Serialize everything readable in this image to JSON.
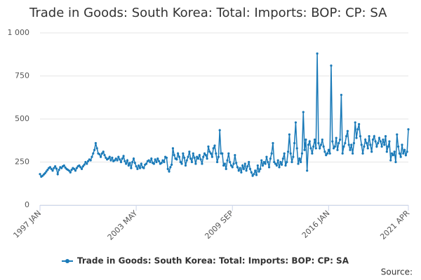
{
  "chart_data": {
    "type": "line",
    "title": "Trade in Goods: South Korea: Total: Imports: BOP: CP: SA",
    "source": "Source:",
    "categories": [
      "1997 JAN",
      null,
      null,
      null,
      null,
      null,
      null,
      null,
      null,
      null,
      null,
      null,
      null,
      null,
      null,
      null,
      null,
      null,
      null,
      null,
      null,
      null,
      null,
      null,
      null,
      null,
      null,
      null,
      null,
      null,
      null,
      null,
      null,
      null,
      null,
      null,
      null,
      null,
      null,
      null,
      null,
      null,
      null,
      null,
      null,
      null,
      null,
      null,
      null,
      null,
      null,
      null,
      null,
      null,
      null,
      null,
      null,
      null,
      null,
      null,
      null,
      null,
      null,
      null,
      null,
      null,
      null,
      null,
      null,
      null,
      null,
      null,
      null,
      null,
      null,
      null,
      "2003 MAY",
      null,
      null,
      null,
      null,
      null,
      null,
      null,
      null,
      null,
      null,
      null,
      null,
      null,
      null,
      null,
      null,
      null,
      null,
      null,
      null,
      null,
      null,
      null,
      null,
      null,
      null,
      null,
      null,
      null,
      null,
      null,
      null,
      null,
      null,
      null,
      null,
      null,
      null,
      null,
      null,
      null,
      null,
      null,
      null,
      null,
      null,
      null,
      null,
      null,
      null,
      null,
      null,
      null,
      null,
      null,
      null,
      null,
      null,
      null,
      null,
      null,
      null,
      null,
      null,
      null,
      null,
      null,
      null,
      null,
      null,
      null,
      null,
      null,
      null,
      null,
      "2009 SEP",
      null,
      null,
      null,
      null,
      null,
      null,
      null,
      null,
      null,
      null,
      null,
      null,
      null,
      null,
      null,
      null,
      null,
      null,
      null,
      null,
      null,
      null,
      null,
      null,
      null,
      null,
      null,
      null,
      null,
      null,
      null,
      null,
      null,
      null,
      null,
      null,
      null,
      null,
      null,
      null,
      null,
      null,
      null,
      null,
      null,
      null,
      null,
      null,
      null,
      null,
      null,
      null,
      null,
      null,
      null,
      null,
      null,
      null,
      null,
      null,
      null,
      null,
      null,
      null,
      null,
      null,
      null,
      null,
      null,
      null,
      null,
      null,
      null,
      null,
      null,
      "2016 JAN",
      null,
      null,
      null,
      null,
      null,
      null,
      null,
      null,
      null,
      null,
      null,
      null,
      null,
      null,
      null,
      null,
      null,
      null,
      null,
      null,
      null,
      null,
      null,
      null,
      null,
      null,
      null,
      null,
      null,
      null,
      null,
      null,
      null,
      null,
      null,
      null,
      null,
      null,
      null,
      null,
      null,
      null,
      null,
      null,
      null,
      null,
      null,
      null,
      null,
      null,
      null,
      null,
      null,
      null,
      null,
      null,
      null,
      null,
      null,
      null,
      null,
      null,
      "2021 APR"
    ],
    "series": [
      {
        "name": "Trade in Goods: South Korea: Total: Imports: BOP: CP: SA",
        "color": "#1a7ab8",
        "values": [
          180,
          165,
          170,
          178,
          185,
          195,
          205,
          215,
          220,
          210,
          200,
          215,
          225,
          212,
          180,
          205,
          220,
          215,
          225,
          230,
          218,
          210,
          205,
          200,
          190,
          205,
          215,
          210,
          200,
          215,
          225,
          230,
          220,
          210,
          225,
          235,
          250,
          240,
          255,
          265,
          260,
          280,
          300,
          320,
          360,
          330,
          300,
          295,
          280,
          300,
          310,
          290,
          275,
          265,
          270,
          280,
          260,
          275,
          255,
          260,
          270,
          260,
          280,
          265,
          250,
          270,
          285,
          255,
          240,
          260,
          230,
          245,
          215,
          250,
          270,
          245,
          225,
          210,
          230,
          215,
          240,
          220,
          215,
          235,
          240,
          255,
          260,
          250,
          270,
          245,
          240,
          265,
          250,
          270,
          255,
          240,
          245,
          260,
          250,
          280,
          275,
          210,
          195,
          220,
          235,
          330,
          290,
          270,
          265,
          300,
          280,
          250,
          240,
          300,
          275,
          230,
          260,
          280,
          310,
          270,
          250,
          300,
          275,
          240,
          280,
          270,
          290,
          265,
          240,
          280,
          300,
          290,
          270,
          340,
          310,
          300,
          280,
          330,
          345,
          300,
          250,
          280,
          435,
          300,
          300,
          230,
          240,
          210,
          260,
          300,
          250,
          230,
          220,
          240,
          290,
          245,
          220,
          200,
          215,
          190,
          230,
          210,
          240,
          200,
          225,
          250,
          210,
          190,
          170,
          180,
          200,
          175,
          230,
          195,
          210,
          260,
          230,
          250,
          240,
          280,
          250,
          220,
          270,
          300,
          360,
          250,
          240,
          230,
          260,
          220,
          250,
          235,
          270,
          300,
          230,
          250,
          310,
          410,
          300,
          250,
          280,
          360,
          480,
          330,
          240,
          270,
          250,
          300,
          540,
          320,
          380,
          200,
          350,
          370,
          330,
          300,
          340,
          380,
          330,
          880,
          360,
          330,
          350,
          380,
          340,
          310,
          290,
          300,
          320,
          300,
          810,
          370,
          330,
          340,
          390,
          320,
          360,
          380,
          640,
          300,
          340,
          360,
          400,
          430,
          350,
          320,
          350,
          300,
          360,
          480,
          390,
          440,
          470,
          400,
          350,
          300,
          340,
          380,
          360,
          330,
          400,
          350,
          310,
          380,
          400,
          370,
          340,
          360,
          390,
          370,
          340,
          380,
          350,
          400,
          310,
          340,
          370,
          260,
          300,
          290,
          310,
          250,
          410,
          340,
          300,
          280,
          350,
          300,
          320,
          290,
          310,
          440
        ]
      }
    ],
    "ylim": [
      0,
      1000
    ],
    "yticks": [
      0,
      250,
      500,
      750,
      {
        "value": 1000,
        "label": "1 000"
      }
    ],
    "grid": true,
    "legend": "bottom"
  }
}
